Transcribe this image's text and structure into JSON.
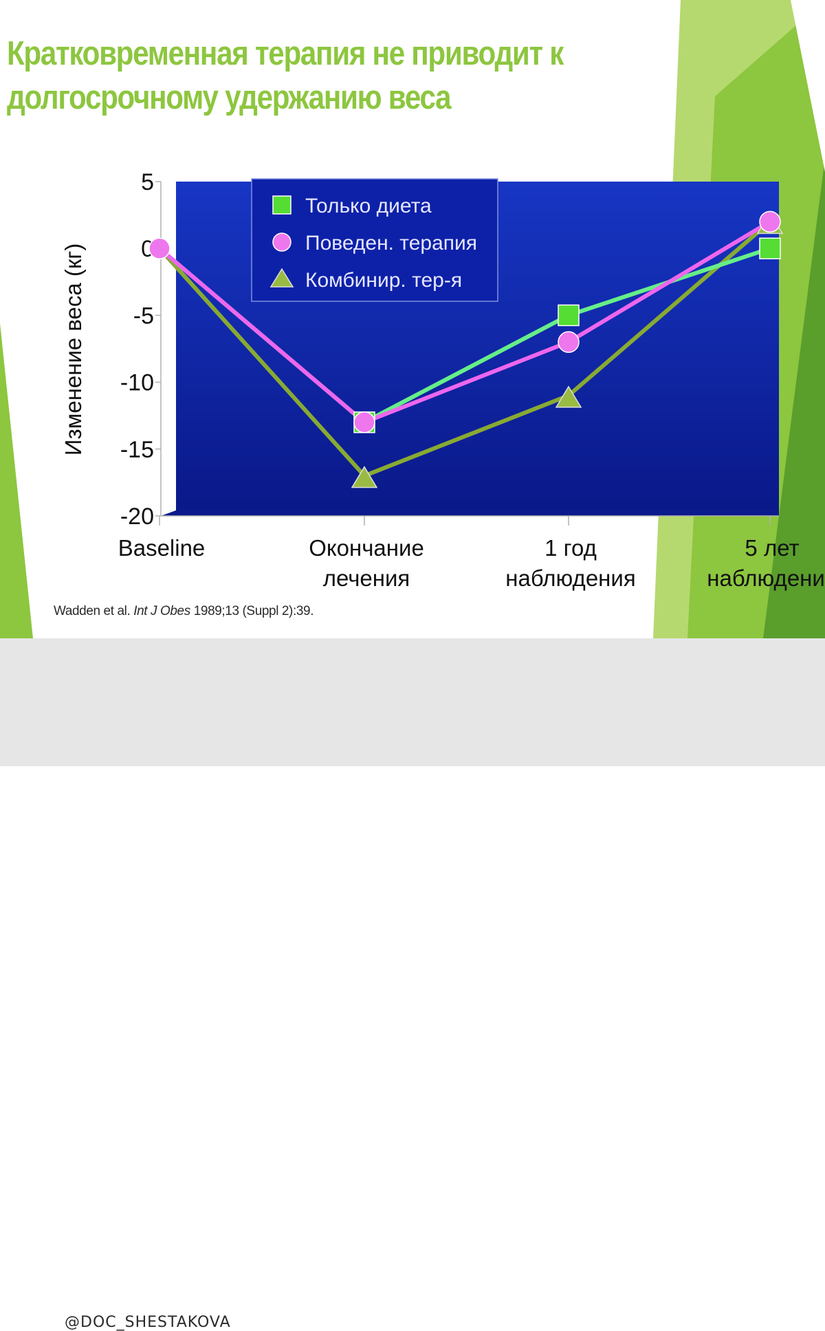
{
  "slide": {
    "title_lines": [
      "Кратковременная терапия не приводит к",
      "долгосрочному удержанию веса"
    ],
    "citation": {
      "authors": "Wadden et al.",
      "journal": "Int J Obes",
      "details": "1989;13 (Suppl 2):39."
    },
    "colors": {
      "title": "#8dc63f",
      "plot_top": "#1736c4",
      "plot_bottom": "#0a1888",
      "accent_green": "#8dc63f",
      "accent_dark_green": "#3f8a1f"
    }
  },
  "footer": {
    "handle": "@DOC_SHESTAKOVA"
  },
  "chart_data": {
    "type": "line",
    "title": "",
    "ylabel": "Изменение веса (кг)",
    "xlabel": "",
    "ylim": [
      -20,
      5
    ],
    "yticks": [
      5,
      0,
      -5,
      -10,
      -15,
      -20
    ],
    "categories": [
      [
        "Baseline"
      ],
      [
        "Окончание",
        "лечения"
      ],
      [
        "1 год",
        "наблюдения"
      ],
      [
        "5 лет",
        "наблюдения"
      ]
    ],
    "legend_position": "top-center",
    "series": [
      {
        "name": "Только диета",
        "marker": "square",
        "color": "#66ee88",
        "marker_color": "#55dd33",
        "values": [
          0,
          -13,
          -5,
          0
        ]
      },
      {
        "name": "Поведен. терапия",
        "marker": "circle",
        "color": "#ee66ee",
        "marker_color": "#ee77ee",
        "values": [
          0,
          -13,
          -7,
          2
        ]
      },
      {
        "name": "Комбинир. тер-я",
        "marker": "triangle",
        "color": "#88aa33",
        "marker_color": "#99bb44",
        "values": [
          0,
          -17,
          -11,
          2
        ]
      }
    ]
  }
}
